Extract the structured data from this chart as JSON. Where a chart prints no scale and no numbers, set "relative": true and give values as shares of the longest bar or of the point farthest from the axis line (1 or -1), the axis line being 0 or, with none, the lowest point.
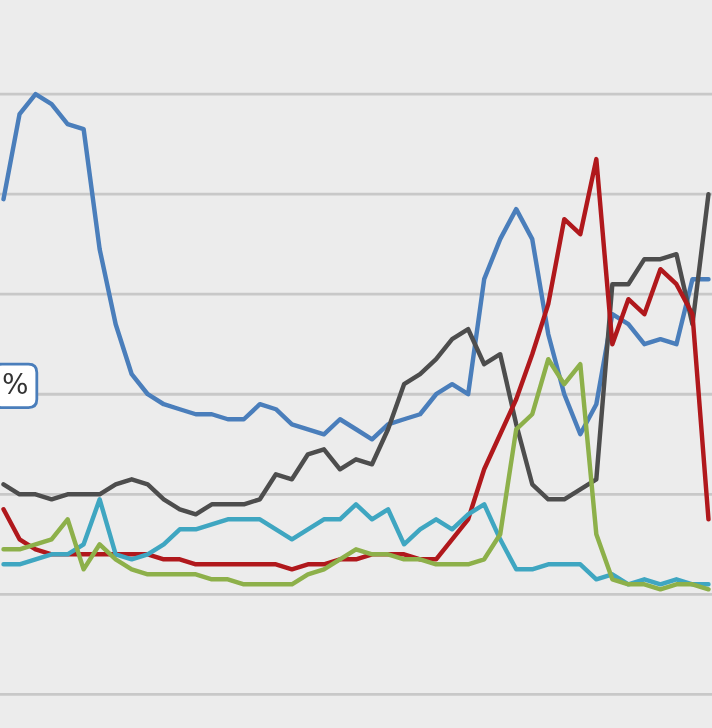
{
  "chart_data": {
    "type": "line",
    "relative": true,
    "grid": "y",
    "legend": false,
    "line_style": "solid",
    "marker": "none",
    "categories": [
      null,
      null,
      null,
      null,
      null,
      null,
      null,
      null,
      null,
      null,
      null,
      null,
      null,
      null,
      null,
      null,
      null,
      null,
      null,
      null,
      null,
      null,
      null,
      null,
      null,
      null,
      null,
      null,
      null,
      null,
      null,
      null,
      null,
      null,
      null,
      null,
      null,
      null,
      null,
      null,
      null,
      null,
      null,
      null,
      null
    ],
    "annotations": [
      "%"
    ],
    "series": [
      {
        "color": "#4a7ebb",
        "values": [
          0.79,
          0.96,
          1.0,
          0.98,
          0.94,
          0.93,
          0.69,
          0.54,
          0.44,
          0.4,
          0.38,
          0.37,
          0.36,
          0.36,
          0.35,
          0.35,
          0.38,
          0.37,
          0.34,
          0.33,
          0.32,
          0.35,
          0.33,
          0.31,
          0.34,
          0.35,
          0.36,
          0.4,
          0.42,
          0.4,
          0.63,
          0.71,
          0.77,
          0.71,
          0.52,
          0.4,
          0.32,
          0.38,
          0.56,
          0.54,
          0.5,
          0.51,
          0.5,
          0.63,
          0.63
        ]
      },
      {
        "color": "#4d4d4d",
        "values": [
          0.22,
          0.2,
          0.2,
          0.19,
          0.2,
          0.2,
          0.2,
          0.22,
          0.23,
          0.22,
          0.19,
          0.17,
          0.16,
          0.18,
          0.18,
          0.18,
          0.19,
          0.24,
          0.23,
          0.28,
          0.29,
          0.25,
          0.27,
          0.26,
          0.33,
          0.42,
          0.44,
          0.47,
          0.51,
          0.53,
          0.46,
          0.48,
          0.34,
          0.22,
          0.19,
          0.19,
          0.21,
          0.23,
          0.62,
          0.62,
          0.67,
          0.67,
          0.68,
          0.54,
          0.8
        ]
      },
      {
        "color": "#b0181c",
        "values": [
          0.17,
          0.11,
          0.09,
          0.08,
          0.08,
          0.08,
          0.08,
          0.08,
          0.08,
          0.08,
          0.07,
          0.07,
          0.06,
          0.06,
          0.06,
          0.06,
          0.06,
          0.06,
          0.05,
          0.06,
          0.06,
          0.07,
          0.07,
          0.08,
          0.08,
          0.08,
          0.07,
          0.07,
          0.11,
          0.15,
          0.25,
          0.32,
          0.39,
          0.48,
          0.58,
          0.75,
          0.72,
          0.87,
          0.5,
          0.59,
          0.56,
          0.65,
          0.62,
          0.56,
          0.15
        ]
      },
      {
        "color": "#3fa6c1",
        "values": [
          0.06,
          0.06,
          0.07,
          0.08,
          0.08,
          0.1,
          0.19,
          0.08,
          0.07,
          0.08,
          0.1,
          0.13,
          0.13,
          0.14,
          0.15,
          0.15,
          0.15,
          0.13,
          0.11,
          0.13,
          0.15,
          0.15,
          0.18,
          0.15,
          0.17,
          0.1,
          0.13,
          0.15,
          0.13,
          0.16,
          0.18,
          0.11,
          0.05,
          0.05,
          0.06,
          0.06,
          0.06,
          0.03,
          0.04,
          0.02,
          0.03,
          0.02,
          0.03,
          0.02,
          0.02
        ]
      },
      {
        "color": "#8db04a",
        "values": [
          0.09,
          0.09,
          0.1,
          0.11,
          0.15,
          0.05,
          0.1,
          0.07,
          0.05,
          0.04,
          0.04,
          0.04,
          0.04,
          0.03,
          0.03,
          0.02,
          0.02,
          0.02,
          0.02,
          0.04,
          0.05,
          0.07,
          0.09,
          0.08,
          0.08,
          0.07,
          0.07,
          0.06,
          0.06,
          0.06,
          0.07,
          0.12,
          0.33,
          0.36,
          0.47,
          0.42,
          0.46,
          0.12,
          0.03,
          0.02,
          0.02,
          0.01,
          0.02,
          0.02,
          0.01
        ]
      }
    ]
  }
}
